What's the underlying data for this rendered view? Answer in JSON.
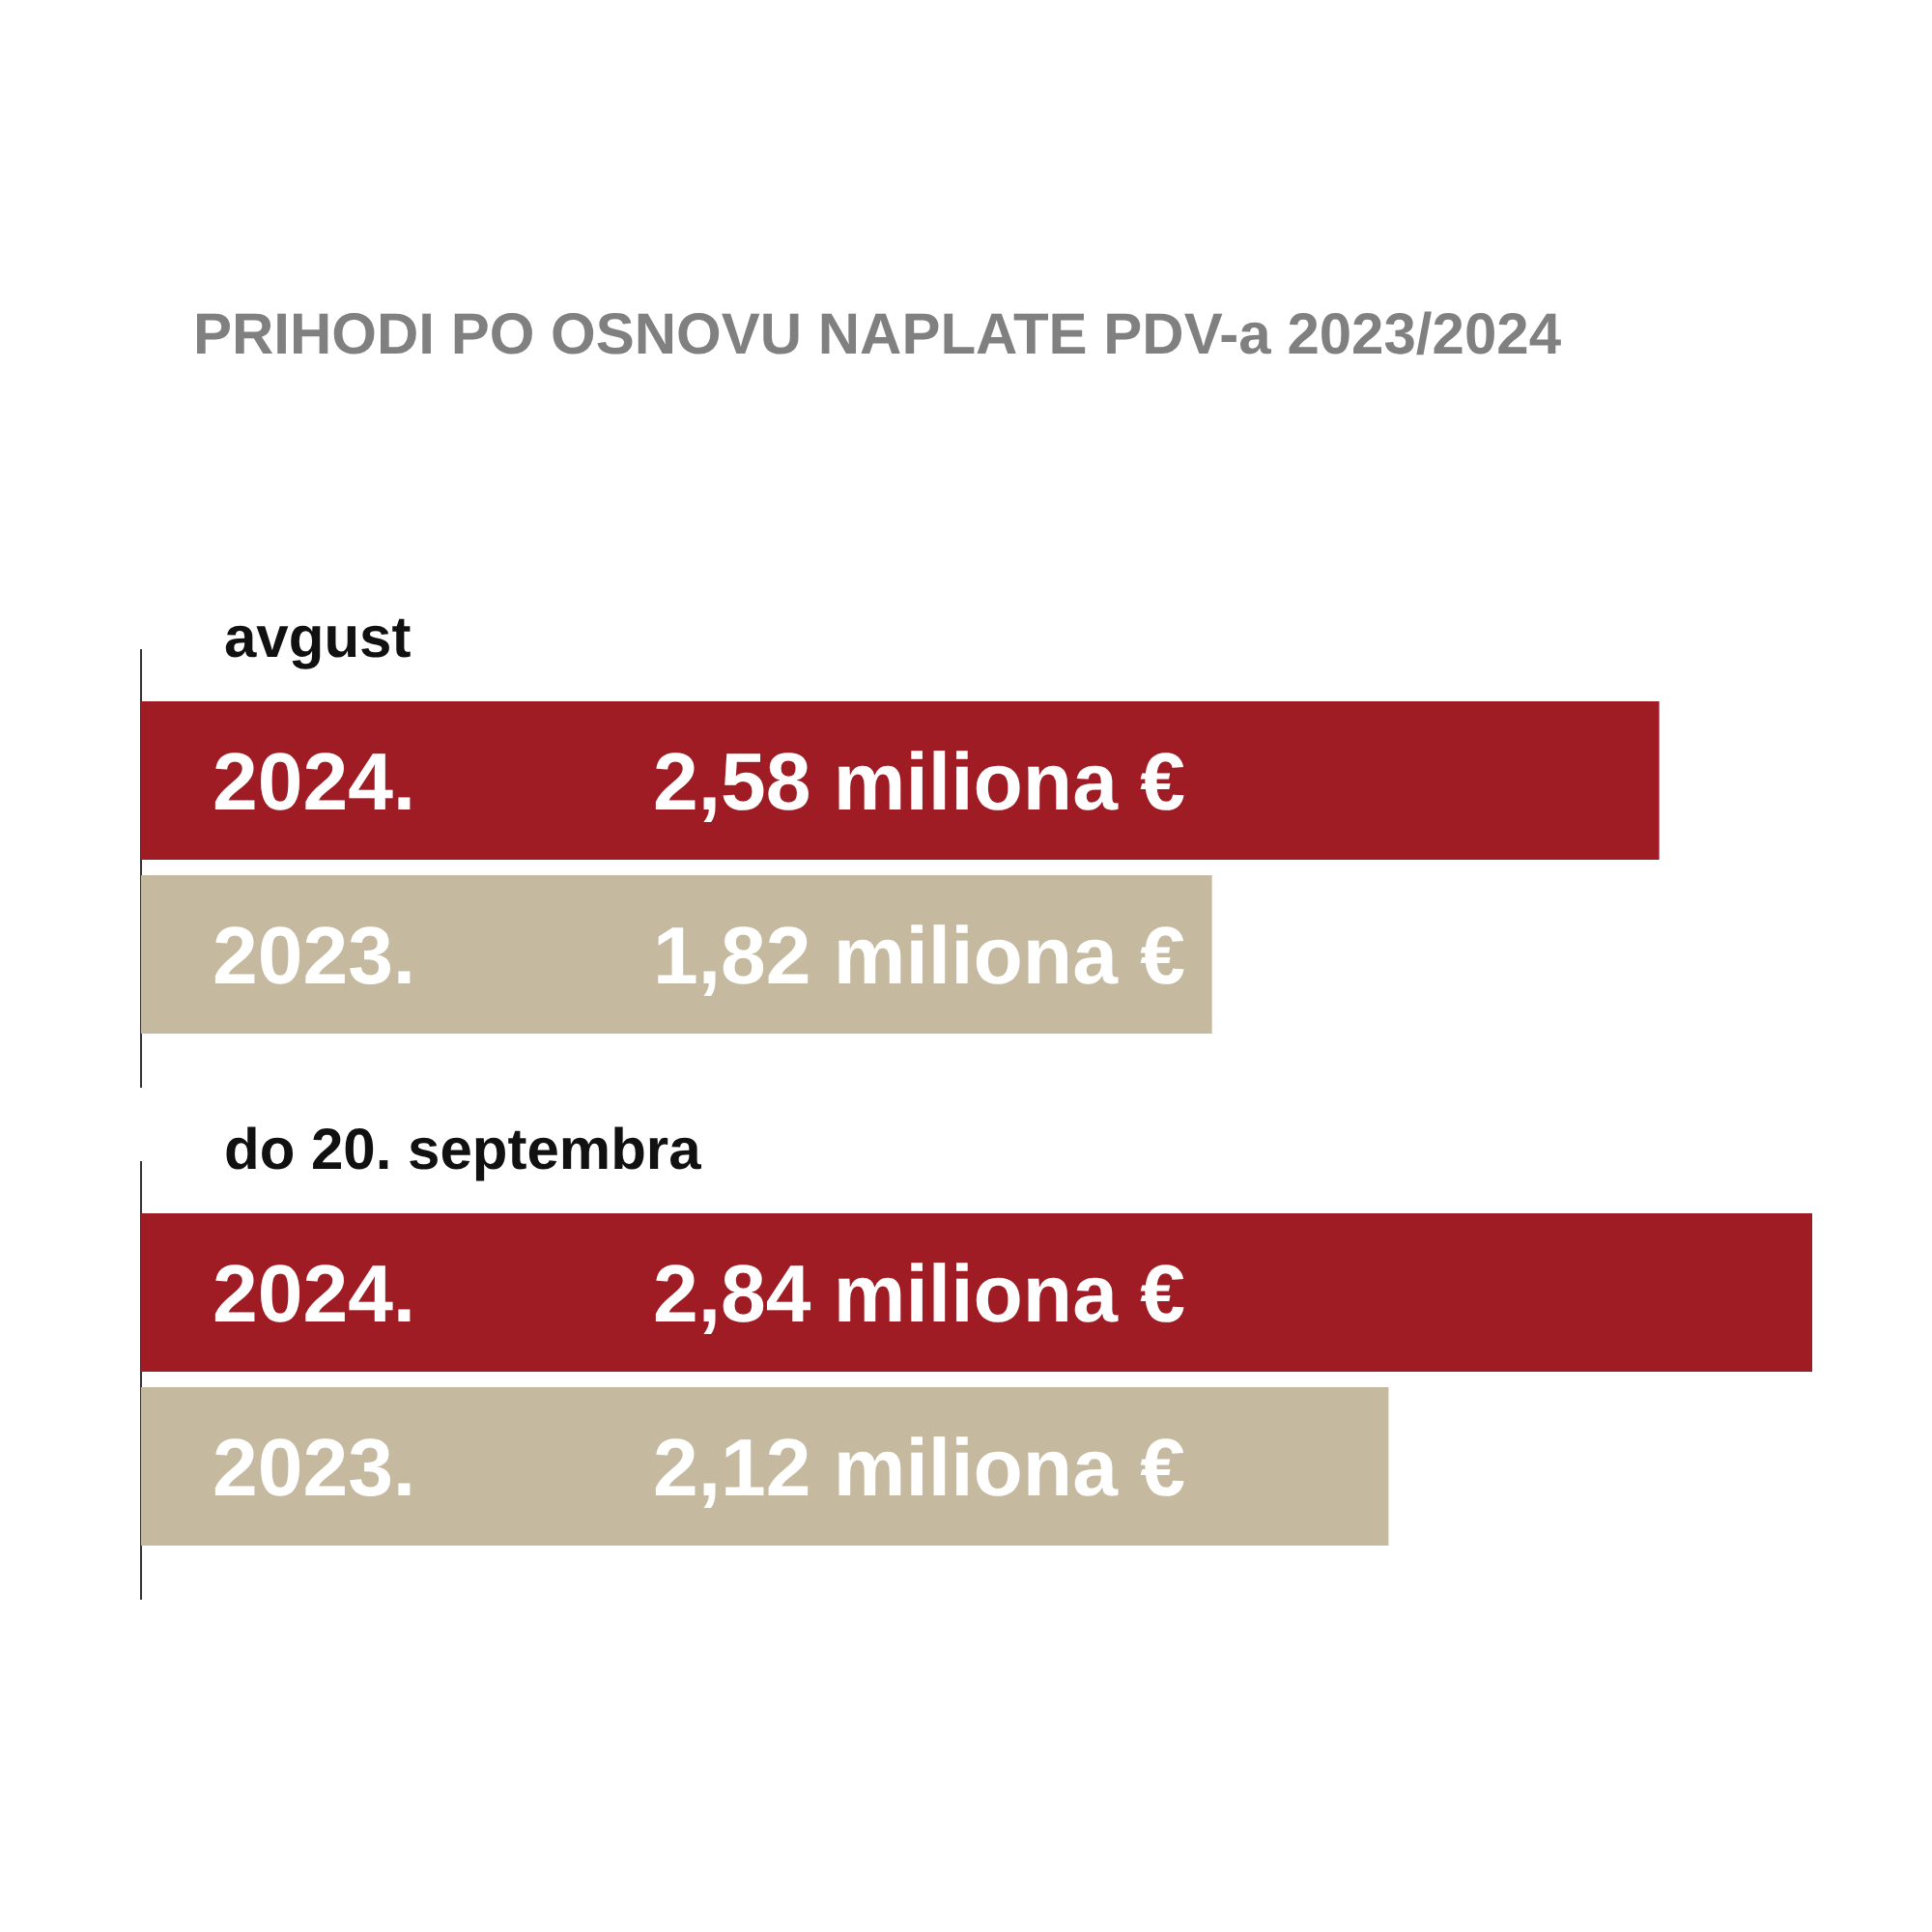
{
  "chart_data": [
    {
      "type": "bar",
      "orientation": "horizontal",
      "title": "PRIHODI PO OSNOVU NAPLATE PDV-a 2023/2024",
      "subtitle": "avgust",
      "categories": [
        "2024.",
        "2023."
      ],
      "values": [
        2.58,
        1.82
      ],
      "colors": [
        "#a01c24",
        "#c5b9a0"
      ],
      "value_labels": [
        "2,58 miliona €",
        "1,82 miliona €"
      ]
    },
    {
      "type": "bar",
      "orientation": "horizontal",
      "subtitle": "do 20. septembra",
      "categories": [
        "2024.",
        "2023."
      ],
      "values": [
        2.84,
        2.12
      ],
      "colors": [
        "#a01c24",
        "#c5b9a0"
      ],
      "value_labels": [
        "2,84 miliona €",
        "2,12 miliona €"
      ]
    }
  ]
}
